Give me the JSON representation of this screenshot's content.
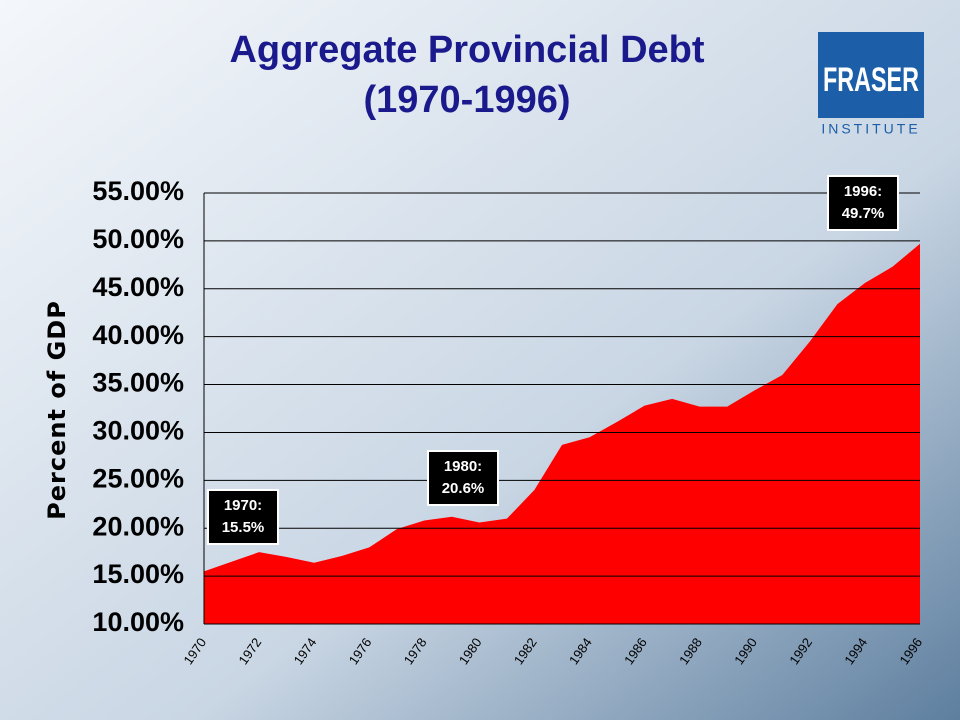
{
  "chart_data": {
    "type": "area",
    "title": [
      "Aggregate Provincial Debt",
      "(1970-1996)"
    ],
    "y_label": "Percent of GDP",
    "categories": [
      "1970",
      null,
      "1972",
      null,
      "1974",
      null,
      "1976",
      null,
      "1978",
      null,
      "1980",
      null,
      "1982",
      null,
      "1984",
      null,
      "1986",
      null,
      "1988",
      null,
      "1990",
      null,
      "1992",
      null,
      "1994",
      null,
      "1996"
    ],
    "values": [
      15.5,
      16.5,
      17.5,
      17.0,
      16.4,
      17.1,
      18.0,
      19.9,
      20.8,
      21.2,
      20.6,
      21.0,
      24.0,
      28.7,
      29.5,
      31.1,
      32.8,
      33.5,
      32.7,
      32.7,
      34.4,
      36.0,
      39.5,
      43.4,
      45.6,
      47.3,
      49.7
    ],
    "color": "#ff0000",
    "ylim": [
      10,
      55
    ],
    "yticks": [
      {
        "value": 10,
        "label": "10.00%"
      },
      {
        "value": 15,
        "label": "15.00%"
      },
      {
        "value": 20,
        "label": "20.00%"
      },
      {
        "value": 25,
        "label": "25.00%"
      },
      {
        "value": 30,
        "label": "30.00%"
      },
      {
        "value": 35,
        "label": "35.00%"
      },
      {
        "value": 40,
        "label": "40.00%"
      },
      {
        "value": 45,
        "label": "45.00%"
      },
      {
        "value": 50,
        "label": "50.00%"
      },
      {
        "value": 55,
        "label": "55.00%"
      }
    ],
    "grid": true,
    "annotations": [
      [
        "1970:",
        "15.5%"
      ],
      [
        "1980:",
        "20.6%"
      ],
      [
        "1996:",
        "49.7%"
      ]
    ],
    "logo": [
      "FRASER",
      "INSTITUTE"
    ]
  }
}
